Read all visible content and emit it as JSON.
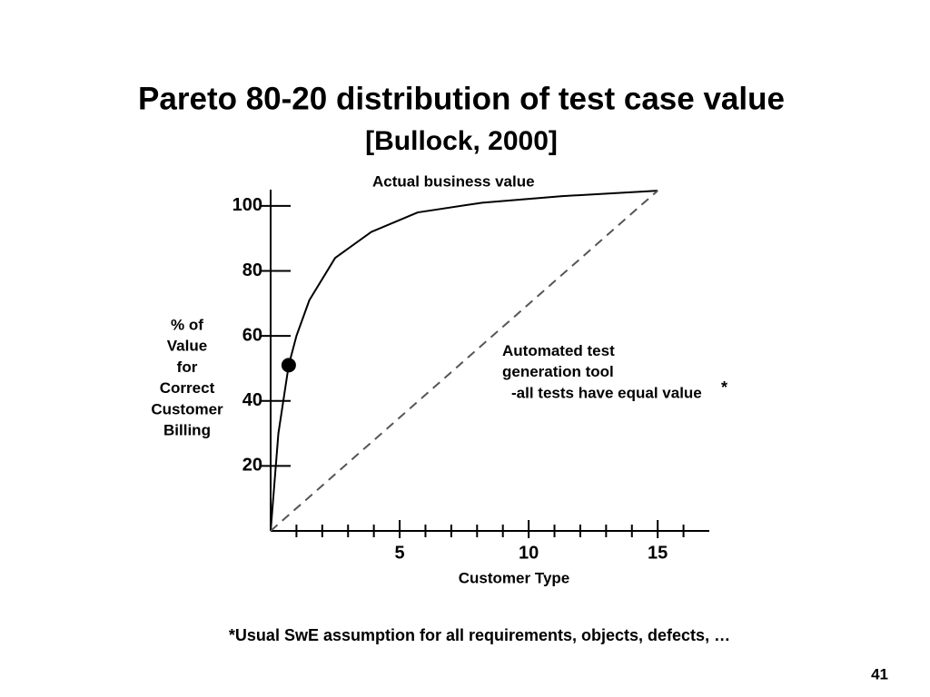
{
  "chart_data": {
    "type": "line",
    "title": "Pareto 80-20 distribution of test case value",
    "subtitle": "[Bullock, 2000]",
    "xlabel": "Customer Type",
    "ylabel_lines": [
      "% of",
      "Value",
      "for",
      "Correct",
      "Customer",
      "Billing"
    ],
    "xlim": [
      0,
      17
    ],
    "ylim": [
      0,
      105
    ],
    "xticks": [
      5,
      10,
      15
    ],
    "xminorticks": [
      1,
      2,
      3,
      4,
      6,
      7,
      8,
      9,
      11,
      12,
      13,
      14,
      16
    ],
    "yticks": [
      20,
      40,
      60,
      80,
      100
    ],
    "series": [
      {
        "name": "Actual business value",
        "color": "#000000",
        "dash": false,
        "x": [
          0,
          0.3,
          0.7,
          1,
          1.5,
          2.5,
          3.9,
          5.7,
          8.2,
          11.3,
          15
        ],
        "values": [
          0,
          30,
          51,
          60,
          71,
          84,
          92,
          98,
          101,
          103,
          104.7
        ]
      },
      {
        "name": "Automated test generation tool",
        "color": "#555555",
        "dash": true,
        "x": [
          0,
          15
        ],
        "values": [
          0,
          104.7
        ]
      }
    ],
    "highlight": {
      "x": 0.7,
      "y": 51
    },
    "annotation": "-all tests have equal value",
    "annotation_mark": "*",
    "footnote": "*Usual SwE assumption for all requirements, objects, defects, …",
    "page_number": "41"
  }
}
